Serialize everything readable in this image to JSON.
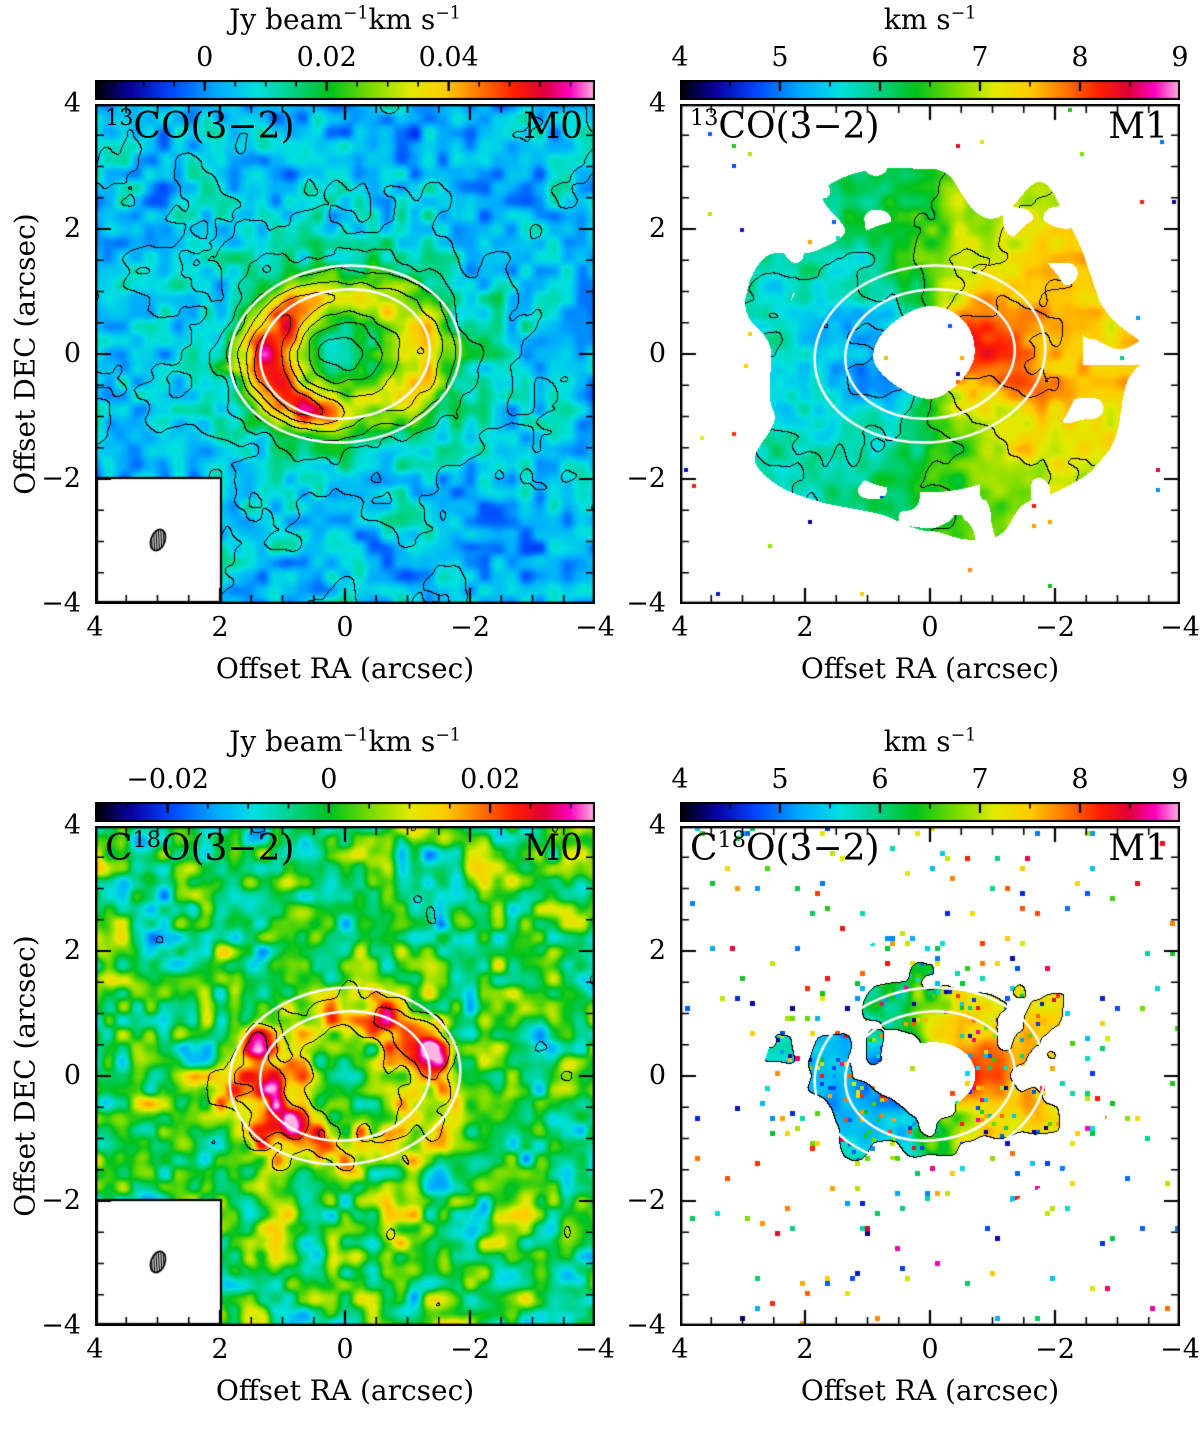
{
  "figure": {
    "description": "2x2 grid of ALMA moment maps",
    "rows": 2,
    "cols": 2
  },
  "axes": {
    "xlabel": "Offset RA (arcsec)",
    "ylabel": "Offset DEC (arcsec)",
    "x_range": [
      4,
      -4
    ],
    "y_range": [
      -4,
      4
    ],
    "ticks": [
      {
        "label": "4",
        "value": 4
      },
      {
        "label": "2",
        "value": 2
      },
      {
        "label": "0",
        "value": 0
      },
      {
        "label": "−2",
        "value": -2
      },
      {
        "label": "−4",
        "value": -4
      }
    ]
  },
  "overlay": {
    "color": "#ffffff",
    "rotation_deg": -6,
    "axis_ratio": 0.76,
    "ellipses_arcsec": [
      {
        "a": 1.85,
        "b": 1.41
      },
      {
        "a": 1.36,
        "b": 1.03
      }
    ]
  },
  "panels": [
    {
      "id": "13co-m0",
      "line_label": [
        {
          "t": "13",
          "sup": true
        },
        {
          "t": "CO(3−2)"
        }
      ],
      "moment_label": "M0",
      "cbar_title": [
        {
          "t": "Jy beam"
        },
        {
          "t": "−1",
          "sup": true
        },
        {
          "t": "km s"
        },
        {
          "t": "−1",
          "sup": true
        }
      ],
      "cbar_ticks": [
        {
          "label": "0",
          "value": 0
        },
        {
          "label": "0.02",
          "value": 0.02
        },
        {
          "label": "0.04",
          "value": 0.04
        }
      ],
      "render": {
        "kind": "m0a",
        "vmin": -0.018,
        "vmax": 0.064,
        "cbar_minor": 0.005,
        "seed": 11,
        "beam": true,
        "contour_levels": [
          0.0065,
          0.013,
          0.021,
          0.03,
          0.039,
          0.048
        ]
      }
    },
    {
      "id": "13co-m1",
      "line_label": [
        {
          "t": "13",
          "sup": true
        },
        {
          "t": "CO(3−2)"
        }
      ],
      "moment_label": "M1",
      "cbar_title": [
        {
          "t": "km s"
        },
        {
          "t": "−1",
          "sup": true
        }
      ],
      "cbar_ticks": [
        {
          "label": "4",
          "value": 4
        },
        {
          "label": "5",
          "value": 5
        },
        {
          "label": "6",
          "value": 6
        },
        {
          "label": "7",
          "value": 7
        },
        {
          "label": "8",
          "value": 8
        },
        {
          "label": "9",
          "value": 9
        }
      ],
      "render": {
        "kind": "m1a",
        "vmin": 4,
        "vmax": 9,
        "cbar_minor": 0.5,
        "seed": 23,
        "beam": false,
        "contour_levels": [
          5.2,
          5.8,
          6.45,
          7.1,
          7.7
        ]
      }
    },
    {
      "id": "c18o-m0",
      "line_label": [
        {
          "t": "C"
        },
        {
          "t": "18",
          "sup": true
        },
        {
          "t": "O(3−2)"
        }
      ],
      "moment_label": "M0",
      "cbar_title": [
        {
          "t": "Jy beam"
        },
        {
          "t": "−1",
          "sup": true
        },
        {
          "t": "km s"
        },
        {
          "t": "−1",
          "sup": true
        }
      ],
      "cbar_ticks": [
        {
          "label": "−0.02",
          "value": -0.02
        },
        {
          "label": "0",
          "value": 0
        },
        {
          "label": "0.02",
          "value": 0.02
        }
      ],
      "render": {
        "kind": "m0b",
        "vmin": -0.029,
        "vmax": 0.033,
        "cbar_minor": 0.005,
        "seed": 37,
        "beam": true,
        "contour_levels": [
          -0.0105,
          0.0105,
          0.0185
        ]
      }
    },
    {
      "id": "c18o-m1",
      "line_label": [
        {
          "t": "C"
        },
        {
          "t": "18",
          "sup": true
        },
        {
          "t": "O(3−2)"
        }
      ],
      "moment_label": "M1",
      "cbar_title": [
        {
          "t": "km s"
        },
        {
          "t": "−1",
          "sup": true
        }
      ],
      "cbar_ticks": [
        {
          "label": "4",
          "value": 4
        },
        {
          "label": "5",
          "value": 5
        },
        {
          "label": "6",
          "value": 6
        },
        {
          "label": "7",
          "value": 7
        },
        {
          "label": "8",
          "value": 8
        },
        {
          "label": "9",
          "value": 9
        }
      ],
      "render": {
        "kind": "m1b",
        "vmin": 4,
        "vmax": 9,
        "cbar_minor": 0.5,
        "seed": 51,
        "beam": false,
        "contour_levels": [
          0.52
        ]
      }
    }
  ],
  "chart_data": [
    {
      "type": "heatmap",
      "panel": "top-left",
      "species": "13CO(3−2)",
      "moment": "M0 integrated intensity",
      "colorbar": {
        "title": "Jy beam−1 km s−1",
        "tick_values": [
          0,
          0.02,
          0.04
        ],
        "approx_range": [
          -0.018,
          0.064
        ]
      },
      "x_axis": {
        "label": "Offset RA (arcsec)",
        "range": [
          4,
          -4
        ],
        "tick_values": [
          4,
          2,
          0,
          -2,
          -4
        ]
      },
      "y_axis": {
        "label": "Offset DEC (arcsec)",
        "range": [
          -4,
          4
        ],
        "tick_values": [
          4,
          2,
          0,
          -2,
          -4
        ]
      },
      "content": {
        "morphology": "inclined elliptical ring of bright emission around a fainter green plateau",
        "ring_radius_arcsec": 1.25,
        "ring_peak_value": 0.05,
        "inner_plateau_value": 0.017,
        "background_value": 0.005,
        "contours": "black intensity contours including scattered noise islands",
        "white_ellipse_overlays_arcsec": [
          [
            1.85,
            1.41
          ],
          [
            1.36,
            1.03
          ]
        ],
        "beam_inset": "white box with hatched beam ellipse, bottom-left"
      }
    },
    {
      "type": "heatmap",
      "panel": "top-right",
      "species": "13CO(3−2)",
      "moment": "M1 intensity-weighted velocity",
      "colorbar": {
        "title": "km s−1",
        "tick_values": [
          4,
          5,
          6,
          7,
          8,
          9
        ],
        "approx_range": [
          4,
          9
        ]
      },
      "x_axis": {
        "label": "Offset RA (arcsec)",
        "range": [
          4,
          -4
        ],
        "tick_values": [
          4,
          2,
          0,
          -2,
          -4
        ]
      },
      "y_axis": {
        "label": "Offset DEC (arcsec)",
        "range": [
          -4,
          4
        ],
        "tick_values": [
          4,
          2,
          0,
          -2,
          -4
        ]
      },
      "content": {
        "systemic_velocity_kms": 6.45,
        "blueshifted_side": "east (left), ~4.8–5.5 km/s compact blue blob",
        "redshifted_side": "west (right), ~7.5–8.4 km/s extended red-orange lobe",
        "outer_disk_kms": [
          6.0,
          6.8
        ],
        "masked": "white central hole and white outside ~3 arcsec irregular boundary",
        "contours": "black iso-velocity contours",
        "white_ellipse_overlays_arcsec": [
          [
            1.85,
            1.41
          ],
          [
            1.36,
            1.03
          ]
        ]
      }
    },
    {
      "type": "heatmap",
      "panel": "bottom-left",
      "species": "C18O(3−2)",
      "moment": "M0 integrated intensity",
      "colorbar": {
        "title": "Jy beam−1 km s−1",
        "tick_values": [
          -0.02,
          0,
          0.02
        ],
        "approx_range": [
          -0.029,
          0.033
        ]
      },
      "x_axis": {
        "label": "Offset RA (arcsec)",
        "range": [
          4,
          -4
        ],
        "tick_values": [
          4,
          2,
          0,
          -2,
          -4
        ]
      },
      "y_axis": {
        "label": "Offset DEC (arcsec)",
        "range": [
          -4,
          4
        ],
        "tick_values": [
          4,
          2,
          0,
          -2,
          -4
        ]
      },
      "content": {
        "morphology": "faint clumpy red/orange ring over noisy green background",
        "ring_radius_arcsec": 1.32,
        "ring_peak_value": 0.025,
        "background_rms_value": 0.006,
        "contours": "black contours outlining ring clumps and noise peaks",
        "white_ellipse_overlays_arcsec": [
          [
            1.85,
            1.41
          ],
          [
            1.36,
            1.03
          ]
        ],
        "beam_inset": "white box with hatched beam ellipse, bottom-left"
      }
    },
    {
      "type": "heatmap",
      "panel": "bottom-right",
      "species": "C18O(3−2)",
      "moment": "M1 intensity-weighted velocity",
      "colorbar": {
        "title": "km s−1",
        "tick_values": [
          4,
          5,
          6,
          7,
          8,
          9
        ],
        "approx_range": [
          4,
          9
        ]
      },
      "x_axis": {
        "label": "Offset RA (arcsec)",
        "range": [
          4,
          -4
        ],
        "tick_values": [
          4,
          2,
          0,
          -2,
          -4
        ]
      },
      "y_axis": {
        "label": "Offset DEC (arcsec)",
        "range": [
          -4,
          4
        ],
        "tick_values": [
          4,
          2,
          0,
          -2,
          -4
        ]
      },
      "content": {
        "morphology": "patchy velocity annulus between ~0.8 and ~2.3 arcsec, white elsewhere",
        "blueshifted_arc_kms": 5.4,
        "redshifted_arc_kms": 7.9,
        "top_bottom_arcs_kms": 6.5,
        "noise": "scattered multicolour speckle pixels across the whole field",
        "contours": "thin black contours outlining annulus clumps",
        "white_ellipse_overlays_arcsec": [
          [
            1.85,
            1.41
          ],
          [
            1.36,
            1.03
          ]
        ]
      }
    }
  ]
}
